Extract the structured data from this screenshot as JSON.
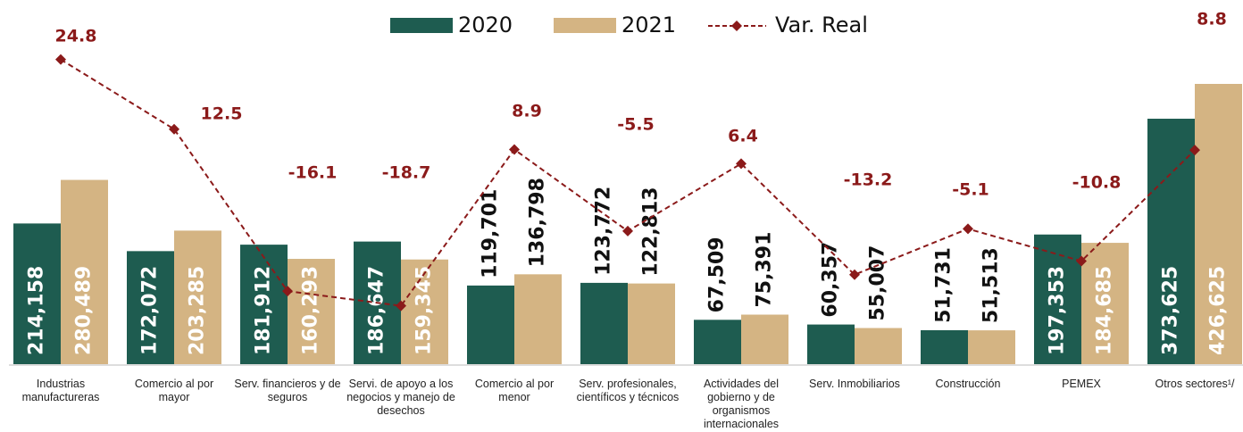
{
  "chart_data": {
    "type": "bar",
    "categories": [
      "Industrias manufactureras",
      "Comercio al por mayor",
      "Serv. financieros y de seguros",
      "Servi. de apoyo a los negocios y manejo de desechos",
      "Comercio al por menor",
      "Serv. profesionales, científicos y técnicos",
      "Actividades del gobierno y de organismos internacionales",
      "Serv. Inmobiliarios",
      "Construcción",
      "PEMEX",
      "Otros sectores¹/"
    ],
    "series": [
      {
        "name": "2020",
        "type": "bar",
        "color": "#1e5c50",
        "values": [
          214158,
          172072,
          181912,
          186647,
          119701,
          123772,
          67509,
          60357,
          51731,
          197353,
          373625
        ],
        "value_labels": [
          "214,158",
          "172,072",
          "181,912",
          "186,647",
          "119,701",
          "123,772",
          "67,509",
          "60,357",
          "51,731",
          "197,353",
          "373,625"
        ]
      },
      {
        "name": "2021",
        "type": "bar",
        "color": "#d4b483",
        "values": [
          280489,
          203285,
          160293,
          159345,
          136798,
          122813,
          75391,
          55007,
          51513,
          184685,
          426625
        ],
        "value_labels": [
          "280,489",
          "203,285",
          "160,293",
          "159,345",
          "136,798",
          "122,813",
          "75,391",
          "55,007",
          "51,513",
          "184,685",
          "426,625"
        ]
      },
      {
        "name": "Var. Real",
        "type": "line",
        "axis": "y2",
        "color": "#8b1a1a",
        "values": [
          24.8,
          12.5,
          -16.1,
          -18.7,
          8.9,
          -5.5,
          6.4,
          -13.2,
          -5.1,
          -10.8,
          8.8
        ]
      }
    ],
    "ylim": [
      0,
      500000
    ],
    "y2lim": [
      -29,
      29
    ]
  }
}
